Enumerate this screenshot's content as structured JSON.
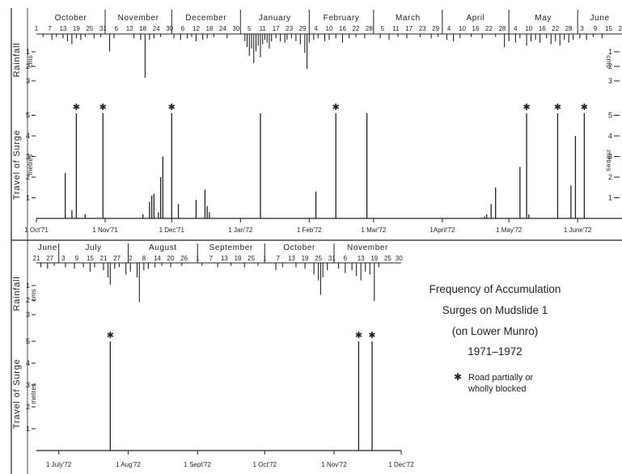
{
  "chart_data": [
    {
      "type": "bar",
      "x_unit": "days",
      "x_range": [
        "1971-10-01",
        "1972-06-21"
      ],
      "top_axis_months": [
        {
          "label": "October",
          "start": "1971-10-01",
          "days": [
            "1",
            "7",
            "13",
            "19",
            "25",
            "31"
          ]
        },
        {
          "label": "November",
          "start": "1971-11-01",
          "days": [
            "6",
            "12",
            "18",
            "24",
            "30"
          ]
        },
        {
          "label": "December",
          "start": "1971-12-01",
          "days": [
            "6",
            "12",
            "18",
            "24",
            "30"
          ]
        },
        {
          "label": "January",
          "start": "1972-01-01",
          "days": [
            "5",
            "11",
            "17",
            "23",
            "29"
          ]
        },
        {
          "label": "February",
          "start": "1972-02-01",
          "days": [
            "4",
            "10",
            "16",
            "22",
            "28"
          ]
        },
        {
          "label": "March",
          "start": "1972-03-01",
          "days": [
            "5",
            "11",
            "17",
            "23",
            "29"
          ]
        },
        {
          "label": "April",
          "start": "1972-04-01",
          "days": [
            "4",
            "10",
            "16",
            "22",
            "28"
          ]
        },
        {
          "label": "May",
          "start": "1972-05-01",
          "days": [
            "4",
            "10",
            "16",
            "22",
            "28"
          ]
        },
        {
          "label": "June",
          "start": "1972-06-01",
          "days": [
            "3",
            "9",
            "15",
            "21"
          ]
        }
      ],
      "rainfall": {
        "ylabel": "Rainfall",
        "unit": "cms",
        "ticks_left": [
          "1",
          "2",
          "3"
        ],
        "ticks_right": [
          "1",
          "2",
          "3"
        ],
        "ylim": [
          0,
          3
        ],
        "values": [
          [
            "1971-10-04",
            0.2
          ],
          [
            "1971-10-08",
            0.4
          ],
          [
            "1971-10-10",
            0.2
          ],
          [
            "1971-10-13",
            0.3
          ],
          [
            "1971-10-15",
            0.5
          ],
          [
            "1971-10-17",
            0.7
          ],
          [
            "1971-10-19",
            0.3
          ],
          [
            "1971-10-21",
            0.4
          ],
          [
            "1971-10-23",
            0.2
          ],
          [
            "1971-10-27",
            0.3
          ],
          [
            "1971-10-30",
            0.2
          ],
          [
            "1971-11-03",
            1.2
          ],
          [
            "1971-11-05",
            0.3
          ],
          [
            "1971-11-14",
            0.3
          ],
          [
            "1971-11-17",
            0.4
          ],
          [
            "1971-11-19",
            3.0
          ],
          [
            "1971-11-21",
            0.4
          ],
          [
            "1971-11-23",
            0.3
          ],
          [
            "1971-11-26",
            0.2
          ],
          [
            "1971-12-02",
            0.3
          ],
          [
            "1971-12-05",
            0.4
          ],
          [
            "1971-12-08",
            0.3
          ],
          [
            "1971-12-10",
            0.2
          ],
          [
            "1971-12-12",
            0.5
          ],
          [
            "1971-12-15",
            0.4
          ],
          [
            "1971-12-17",
            0.3
          ],
          [
            "1971-12-20",
            0.2
          ],
          [
            "1971-12-26",
            0.3
          ],
          [
            "1972-01-03",
            0.5
          ],
          [
            "1972-01-04",
            0.9
          ],
          [
            "1972-01-05",
            1.5
          ],
          [
            "1972-01-06",
            1.0
          ],
          [
            "1972-01-07",
            2.0
          ],
          [
            "1972-01-08",
            1.2
          ],
          [
            "1972-01-09",
            0.8
          ],
          [
            "1972-01-10",
            1.6
          ],
          [
            "1972-01-11",
            0.7
          ],
          [
            "1972-01-12",
            0.4
          ],
          [
            "1972-01-13",
            0.6
          ],
          [
            "1972-01-14",
            1.0
          ],
          [
            "1972-01-15",
            0.5
          ],
          [
            "1972-01-17",
            0.3
          ],
          [
            "1972-01-19",
            0.5
          ],
          [
            "1972-01-21",
            0.6
          ],
          [
            "1972-01-22",
            0.4
          ],
          [
            "1972-01-24",
            0.3
          ],
          [
            "1972-01-26",
            0.5
          ],
          [
            "1972-01-28",
            0.7
          ],
          [
            "1972-01-30",
            1.3
          ],
          [
            "1972-01-31",
            2.4
          ],
          [
            "1972-02-01",
            0.6
          ],
          [
            "1972-02-03",
            0.4
          ],
          [
            "1972-02-05",
            0.3
          ],
          [
            "1972-02-08",
            0.5
          ],
          [
            "1972-02-10",
            0.4
          ],
          [
            "1972-02-13",
            0.3
          ],
          [
            "1972-02-16",
            0.6
          ],
          [
            "1972-02-19",
            0.3
          ],
          [
            "1972-02-22",
            0.2
          ],
          [
            "1972-02-26",
            0.3
          ],
          [
            "1972-03-04",
            0.3
          ],
          [
            "1972-03-08",
            0.4
          ],
          [
            "1972-03-12",
            0.2
          ],
          [
            "1972-03-16",
            0.3
          ],
          [
            "1972-03-22",
            0.2
          ],
          [
            "1972-03-27",
            0.3
          ],
          [
            "1972-03-30",
            0.2
          ],
          [
            "1972-04-03",
            0.4
          ],
          [
            "1972-04-06",
            0.5
          ],
          [
            "1972-04-09",
            0.3
          ],
          [
            "1972-04-14",
            0.2
          ],
          [
            "1972-04-19",
            0.3
          ],
          [
            "1972-04-25",
            0.2
          ],
          [
            "1972-04-29",
            0.9
          ],
          [
            "1972-05-01",
            0.5
          ],
          [
            "1972-05-04",
            0.6
          ],
          [
            "1972-05-06",
            0.3
          ],
          [
            "1972-05-09",
            0.8
          ],
          [
            "1972-05-11",
            0.5
          ],
          [
            "1972-05-13",
            0.4
          ],
          [
            "1972-05-15",
            0.6
          ],
          [
            "1972-05-18",
            0.3
          ],
          [
            "1972-05-20",
            0.7
          ],
          [
            "1972-05-22",
            0.5
          ],
          [
            "1972-05-24",
            0.8
          ],
          [
            "1972-05-26",
            0.4
          ],
          [
            "1972-05-28",
            0.6
          ],
          [
            "1972-05-30",
            0.4
          ],
          [
            "1972-06-02",
            0.3
          ],
          [
            "1972-06-05",
            0.4
          ],
          [
            "1972-06-08",
            0.2
          ],
          [
            "1972-06-12",
            0.3
          ]
        ]
      },
      "surge": {
        "ylabel": "Travel of Surge",
        "unit": "metres",
        "ticks_left": [
          "1",
          "2",
          "3",
          "4",
          "5"
        ],
        "ticks_right": [
          "1",
          "2",
          "3",
          "4",
          "5"
        ],
        "ylim": [
          0,
          5.6
        ],
        "x_labels": [
          "1 Oct'71",
          "1 Nov'71",
          "1 Dec'71",
          "1 Jan'72",
          "1 Feb'72",
          "1 Mar'72",
          "1April'72",
          "1 May'72",
          "1 June'72"
        ],
        "x_label_dates": [
          "1971-10-01",
          "1971-11-01",
          "1971-12-01",
          "1972-01-01",
          "1972-02-01",
          "1972-03-01",
          "1972-04-01",
          "1972-05-01",
          "1972-06-01"
        ],
        "values": [
          [
            "1971-10-14",
            2.2,
            false
          ],
          [
            "1971-10-17",
            0.4,
            false
          ],
          [
            "1971-10-19",
            5.1,
            true
          ],
          [
            "1971-10-23",
            0.2,
            false
          ],
          [
            "1971-10-31",
            5.1,
            true
          ],
          [
            "1971-11-18",
            0.2,
            false
          ],
          [
            "1971-11-21",
            0.8,
            false
          ],
          [
            "1971-11-22",
            1.1,
            false
          ],
          [
            "1971-11-23",
            1.2,
            false
          ],
          [
            "1971-11-25",
            0.3,
            false
          ],
          [
            "1971-11-26",
            2.0,
            false
          ],
          [
            "1971-11-27",
            3.0,
            false
          ],
          [
            "1971-12-01",
            5.1,
            true
          ],
          [
            "1971-12-04",
            0.7,
            false
          ],
          [
            "1971-12-12",
            0.9,
            false
          ],
          [
            "1971-12-16",
            1.4,
            false
          ],
          [
            "1971-12-17",
            0.6,
            false
          ],
          [
            "1971-12-18",
            0.3,
            false
          ],
          [
            "1972-01-10",
            5.1,
            false
          ],
          [
            "1972-02-04",
            1.3,
            false
          ],
          [
            "1972-02-13",
            5.1,
            true
          ],
          [
            "1972-02-27",
            5.1,
            false
          ],
          [
            "1972-04-20",
            0.1,
            false
          ],
          [
            "1972-04-21",
            0.2,
            false
          ],
          [
            "1972-04-23",
            0.7,
            false
          ],
          [
            "1972-04-25",
            1.5,
            false
          ],
          [
            "1972-05-06",
            2.5,
            false
          ],
          [
            "1972-05-09",
            5.1,
            true
          ],
          [
            "1972-05-10",
            0.2,
            false
          ],
          [
            "1972-05-23",
            5.1,
            true
          ],
          [
            "1972-05-29",
            1.6,
            false
          ],
          [
            "1972-05-31",
            4.0,
            false
          ],
          [
            "1972-06-04",
            5.1,
            true
          ]
        ]
      }
    },
    {
      "type": "bar",
      "x_unit": "days",
      "x_range": [
        "1972-06-21",
        "1972-12-01"
      ],
      "top_axis_months": [
        {
          "label": "June",
          "start": "1972-06-21",
          "days": [
            "21",
            "27"
          ]
        },
        {
          "label": "July",
          "start": "1972-07-01",
          "days": [
            "3",
            "9",
            "15",
            "21",
            "27"
          ]
        },
        {
          "label": "August",
          "start": "1972-08-01",
          "days": [
            "2",
            "8",
            "14",
            "20",
            "26"
          ]
        },
        {
          "label": "September",
          "start": "1972-09-01",
          "days": [
            "1",
            "7",
            "13",
            "19",
            "25"
          ]
        },
        {
          "label": "October",
          "start": "1972-10-01",
          "days": [
            "1",
            "7",
            "13",
            "19",
            "25",
            "31"
          ]
        },
        {
          "label": "November",
          "start": "1972-11-01",
          "days": [
            "6",
            "13",
            "19",
            "25",
            "30"
          ]
        }
      ],
      "rainfall": {
        "ylabel": "Rainfall",
        "unit": "cms",
        "ticks_left": [
          "1",
          "2",
          "3"
        ],
        "ylim": [
          0,
          3
        ],
        "values": [
          [
            "1972-06-23",
            0.3
          ],
          [
            "1972-06-26",
            0.4
          ],
          [
            "1972-06-29",
            0.2
          ],
          [
            "1972-07-04",
            0.3
          ],
          [
            "1972-07-08",
            0.4
          ],
          [
            "1972-07-12",
            0.3
          ],
          [
            "1972-07-15",
            0.6
          ],
          [
            "1972-07-17",
            0.3
          ],
          [
            "1972-07-21",
            0.5
          ],
          [
            "1972-07-23",
            1.0
          ],
          [
            "1972-07-24",
            1.5
          ],
          [
            "1972-07-26",
            0.4
          ],
          [
            "1972-07-28",
            0.3
          ],
          [
            "1972-07-31",
            0.8
          ],
          [
            "1972-08-02",
            0.6
          ],
          [
            "1972-08-05",
            1.0
          ],
          [
            "1972-08-06",
            2.7
          ],
          [
            "1972-08-08",
            0.5
          ],
          [
            "1972-08-10",
            0.4
          ],
          [
            "1972-08-13",
            0.3
          ],
          [
            "1972-08-16",
            0.2
          ],
          [
            "1972-08-20",
            0.3
          ],
          [
            "1972-08-25",
            0.2
          ],
          [
            "1972-09-03",
            0.2
          ],
          [
            "1972-09-10",
            0.3
          ],
          [
            "1972-09-16",
            0.2
          ],
          [
            "1972-09-22",
            0.3
          ],
          [
            "1972-09-28",
            0.2
          ],
          [
            "1972-10-06",
            0.5
          ],
          [
            "1972-10-09",
            0.3
          ],
          [
            "1972-10-15",
            0.3
          ],
          [
            "1972-10-19",
            0.4
          ],
          [
            "1972-10-23",
            0.8
          ],
          [
            "1972-10-25",
            1.2
          ],
          [
            "1972-10-26",
            2.2
          ],
          [
            "1972-10-27",
            1.0
          ],
          [
            "1972-10-29",
            0.5
          ],
          [
            "1972-11-03",
            0.4
          ],
          [
            "1972-11-06",
            0.7
          ],
          [
            "1972-11-09",
            0.5
          ],
          [
            "1972-11-11",
            0.9
          ],
          [
            "1972-11-13",
            1.2
          ],
          [
            "1972-11-15",
            0.6
          ],
          [
            "1972-11-17",
            0.8
          ],
          [
            "1972-11-19",
            2.6
          ],
          [
            "1972-11-21",
            0.3
          ]
        ]
      },
      "surge": {
        "ylabel": "Travel of Surge",
        "unit": "metres",
        "ticks_left": [
          "1",
          "2",
          "3",
          "4",
          "5"
        ],
        "ylim": [
          0,
          5.6
        ],
        "x_labels": [
          "1 July'72",
          "1 Aug'72",
          "1 Sept'72",
          "1 Oct'72",
          "1 Nov'72",
          "1 Dec'72"
        ],
        "x_label_dates": [
          "1972-07-01",
          "1972-08-01",
          "1972-09-01",
          "1972-10-01",
          "1972-11-01",
          "1972-12-01"
        ],
        "values": [
          [
            "1972-07-24",
            5.0,
            true
          ],
          [
            "1972-11-12",
            5.0,
            true
          ],
          [
            "1972-11-18",
            5.0,
            true
          ]
        ]
      }
    }
  ],
  "caption": {
    "line1": "Frequency of Accumulation",
    "line2": "Surges on Mudslide 1",
    "line3": "(on  Lower Munro)",
    "line4": "1971–1972"
  },
  "legend": {
    "symbol": "✱",
    "line1": "Road partially or",
    "line2": "wholly blocked"
  }
}
